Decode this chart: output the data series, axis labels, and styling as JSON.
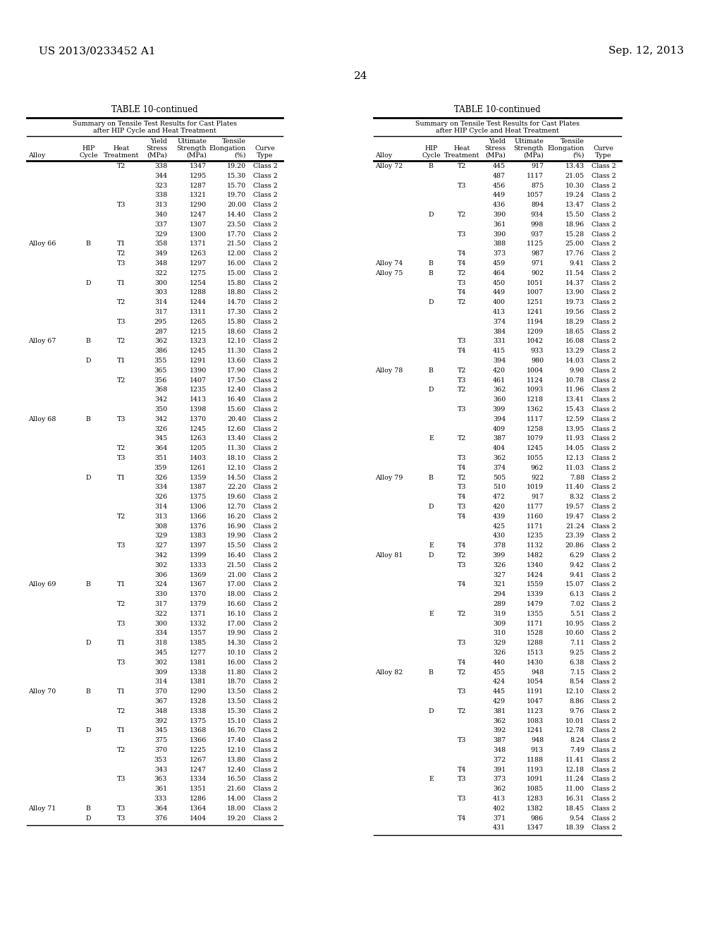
{
  "page_header_left": "US 2013/0233452 A1",
  "page_header_right": "Sep. 12, 2013",
  "page_number": "24",
  "table_title": "TABLE 10-continued",
  "subtitle_line1": "Summary on Tensile Test Results for Cast Plates",
  "subtitle_line2": "after HIP Cycle and Heat Treatment",
  "col_headers_line1": [
    "",
    "",
    "",
    "Yield",
    "Ultimate",
    "Tensile",
    ""
  ],
  "col_headers_line2": [
    "",
    "HIP",
    "Heat",
    "Stress",
    "Strength",
    "Elongation",
    "Curve"
  ],
  "col_headers_line3": [
    "Alloy",
    "Cycle",
    "Treatment",
    "(MPa)",
    "(MPa)",
    "(%)",
    "Type"
  ],
  "left_table": [
    [
      "",
      "",
      "T2",
      "338",
      "1347",
      "19.20",
      "Class 2"
    ],
    [
      "",
      "",
      "",
      "344",
      "1295",
      "15.30",
      "Class 2"
    ],
    [
      "",
      "",
      "",
      "323",
      "1287",
      "15.70",
      "Class 2"
    ],
    [
      "",
      "",
      "",
      "338",
      "1321",
      "19.70",
      "Class 2"
    ],
    [
      "",
      "",
      "T3",
      "313",
      "1290",
      "20.00",
      "Class 2"
    ],
    [
      "",
      "",
      "",
      "340",
      "1247",
      "14.40",
      "Class 2"
    ],
    [
      "",
      "",
      "",
      "337",
      "1307",
      "23.50",
      "Class 2"
    ],
    [
      "",
      "",
      "",
      "329",
      "1300",
      "17.70",
      "Class 2"
    ],
    [
      "Alloy 66",
      "B",
      "T1",
      "358",
      "1371",
      "21.50",
      "Class 2"
    ],
    [
      "",
      "",
      "T2",
      "349",
      "1263",
      "12.00",
      "Class 2"
    ],
    [
      "",
      "",
      "T3",
      "348",
      "1297",
      "16.00",
      "Class 2"
    ],
    [
      "",
      "",
      "",
      "322",
      "1275",
      "15.00",
      "Class 2"
    ],
    [
      "",
      "D",
      "T1",
      "300",
      "1254",
      "15.80",
      "Class 2"
    ],
    [
      "",
      "",
      "",
      "303",
      "1288",
      "18.80",
      "Class 2"
    ],
    [
      "",
      "",
      "T2",
      "314",
      "1244",
      "14.70",
      "Class 2"
    ],
    [
      "",
      "",
      "",
      "317",
      "1311",
      "17.30",
      "Class 2"
    ],
    [
      "",
      "",
      "T3",
      "295",
      "1265",
      "15.80",
      "Class 2"
    ],
    [
      "",
      "",
      "",
      "287",
      "1215",
      "18.60",
      "Class 2"
    ],
    [
      "Alloy 67",
      "B",
      "T2",
      "362",
      "1323",
      "12.10",
      "Class 2"
    ],
    [
      "",
      "",
      "",
      "386",
      "1245",
      "11.30",
      "Class 2"
    ],
    [
      "",
      "D",
      "T1",
      "355",
      "1291",
      "13.60",
      "Class 2"
    ],
    [
      "",
      "",
      "",
      "365",
      "1390",
      "17.90",
      "Class 2"
    ],
    [
      "",
      "",
      "T2",
      "356",
      "1407",
      "17.50",
      "Class 2"
    ],
    [
      "",
      "",
      "",
      "368",
      "1235",
      "12.40",
      "Class 2"
    ],
    [
      "",
      "",
      "",
      "342",
      "1413",
      "16.40",
      "Class 2"
    ],
    [
      "",
      "",
      "",
      "350",
      "1398",
      "15.60",
      "Class 2"
    ],
    [
      "Alloy 68",
      "B",
      "T3",
      "342",
      "1370",
      "20.40",
      "Class 2"
    ],
    [
      "",
      "",
      "",
      "326",
      "1245",
      "12.60",
      "Class 2"
    ],
    [
      "",
      "",
      "",
      "345",
      "1263",
      "13.40",
      "Class 2"
    ],
    [
      "",
      "",
      "T2",
      "364",
      "1205",
      "11.30",
      "Class 2"
    ],
    [
      "",
      "",
      "T3",
      "351",
      "1403",
      "18.10",
      "Class 2"
    ],
    [
      "",
      "",
      "",
      "359",
      "1261",
      "12.10",
      "Class 2"
    ],
    [
      "",
      "D",
      "T1",
      "326",
      "1359",
      "14.50",
      "Class 2"
    ],
    [
      "",
      "",
      "",
      "334",
      "1387",
      "22.20",
      "Class 2"
    ],
    [
      "",
      "",
      "",
      "326",
      "1375",
      "19.60",
      "Class 2"
    ],
    [
      "",
      "",
      "",
      "314",
      "1306",
      "12.70",
      "Class 2"
    ],
    [
      "",
      "",
      "T2",
      "313",
      "1366",
      "16.20",
      "Class 2"
    ],
    [
      "",
      "",
      "",
      "308",
      "1376",
      "16.90",
      "Class 2"
    ],
    [
      "",
      "",
      "",
      "329",
      "1383",
      "19.90",
      "Class 2"
    ],
    [
      "",
      "",
      "T3",
      "327",
      "1397",
      "15.50",
      "Class 2"
    ],
    [
      "",
      "",
      "",
      "342",
      "1399",
      "16.40",
      "Class 2"
    ],
    [
      "",
      "",
      "",
      "302",
      "1333",
      "21.50",
      "Class 2"
    ],
    [
      "",
      "",
      "",
      "306",
      "1369",
      "21.00",
      "Class 2"
    ],
    [
      "Alloy 69",
      "B",
      "T1",
      "324",
      "1367",
      "17.00",
      "Class 2"
    ],
    [
      "",
      "",
      "",
      "330",
      "1370",
      "18.00",
      "Class 2"
    ],
    [
      "",
      "",
      "T2",
      "317",
      "1379",
      "16.60",
      "Class 2"
    ],
    [
      "",
      "",
      "",
      "322",
      "1371",
      "16.10",
      "Class 2"
    ],
    [
      "",
      "",
      "T3",
      "300",
      "1332",
      "17.00",
      "Class 2"
    ],
    [
      "",
      "",
      "",
      "334",
      "1357",
      "19.90",
      "Class 2"
    ],
    [
      "",
      "D",
      "T1",
      "318",
      "1385",
      "14.30",
      "Class 2"
    ],
    [
      "",
      "",
      "",
      "345",
      "1277",
      "10.10",
      "Class 2"
    ],
    [
      "",
      "",
      "T3",
      "302",
      "1381",
      "16.00",
      "Class 2"
    ],
    [
      "",
      "",
      "",
      "309",
      "1338",
      "11.80",
      "Class 2"
    ],
    [
      "",
      "",
      "",
      "314",
      "1381",
      "18.70",
      "Class 2"
    ],
    [
      "Alloy 70",
      "B",
      "T1",
      "370",
      "1290",
      "13.50",
      "Class 2"
    ],
    [
      "",
      "",
      "",
      "367",
      "1328",
      "13.50",
      "Class 2"
    ],
    [
      "",
      "",
      "T2",
      "348",
      "1338",
      "15.30",
      "Class 2"
    ],
    [
      "",
      "",
      "",
      "392",
      "1375",
      "15.10",
      "Class 2"
    ],
    [
      "",
      "D",
      "T1",
      "345",
      "1368",
      "16.70",
      "Class 2"
    ],
    [
      "",
      "",
      "",
      "375",
      "1366",
      "17.40",
      "Class 2"
    ],
    [
      "",
      "",
      "T2",
      "370",
      "1225",
      "12.10",
      "Class 2"
    ],
    [
      "",
      "",
      "",
      "353",
      "1267",
      "13.80",
      "Class 2"
    ],
    [
      "",
      "",
      "",
      "343",
      "1247",
      "12.40",
      "Class 2"
    ],
    [
      "",
      "",
      "T3",
      "363",
      "1334",
      "16.50",
      "Class 2"
    ],
    [
      "",
      "",
      "",
      "361",
      "1351",
      "21.60",
      "Class 2"
    ],
    [
      "",
      "",
      "",
      "333",
      "1286",
      "14.00",
      "Class 2"
    ],
    [
      "Alloy 71",
      "B",
      "T3",
      "364",
      "1364",
      "18.00",
      "Class 2"
    ],
    [
      "",
      "D",
      "T3",
      "376",
      "1404",
      "19.20",
      "Class 2"
    ]
  ],
  "right_table": [
    [
      "Alloy 72",
      "B",
      "T2",
      "445",
      "917",
      "13.43",
      "Class 2"
    ],
    [
      "",
      "",
      "",
      "487",
      "1117",
      "21.05",
      "Class 2"
    ],
    [
      "",
      "",
      "T3",
      "456",
      "875",
      "10.30",
      "Class 2"
    ],
    [
      "",
      "",
      "",
      "449",
      "1057",
      "19.24",
      "Class 2"
    ],
    [
      "",
      "",
      "",
      "436",
      "894",
      "13.47",
      "Class 2"
    ],
    [
      "",
      "D",
      "T2",
      "390",
      "934",
      "15.50",
      "Class 2"
    ],
    [
      "",
      "",
      "",
      "361",
      "998",
      "18.96",
      "Class 2"
    ],
    [
      "",
      "",
      "T3",
      "390",
      "937",
      "15.28",
      "Class 2"
    ],
    [
      "",
      "",
      "",
      "388",
      "1125",
      "25.00",
      "Class 2"
    ],
    [
      "",
      "",
      "T4",
      "373",
      "987",
      "17.76",
      "Class 2"
    ],
    [
      "Alloy 74",
      "B",
      "T4",
      "459",
      "971",
      "9.41",
      "Class 2"
    ],
    [
      "Alloy 75",
      "B",
      "T2",
      "464",
      "902",
      "11.54",
      "Class 2"
    ],
    [
      "",
      "",
      "T3",
      "450",
      "1051",
      "14.37",
      "Class 2"
    ],
    [
      "",
      "",
      "T4",
      "449",
      "1007",
      "13.90",
      "Class 2"
    ],
    [
      "",
      "D",
      "T2",
      "400",
      "1251",
      "19.73",
      "Class 2"
    ],
    [
      "",
      "",
      "",
      "413",
      "1241",
      "19.56",
      "Class 2"
    ],
    [
      "",
      "",
      "",
      "374",
      "1194",
      "18.29",
      "Class 2"
    ],
    [
      "",
      "",
      "",
      "384",
      "1209",
      "18.65",
      "Class 2"
    ],
    [
      "",
      "",
      "T3",
      "331",
      "1042",
      "16.08",
      "Class 2"
    ],
    [
      "",
      "",
      "T4",
      "415",
      "933",
      "13.29",
      "Class 2"
    ],
    [
      "",
      "",
      "",
      "394",
      "980",
      "14.03",
      "Class 2"
    ],
    [
      "Alloy 78",
      "B",
      "T2",
      "420",
      "1004",
      "9.90",
      "Class 2"
    ],
    [
      "",
      "",
      "T3",
      "461",
      "1124",
      "10.78",
      "Class 2"
    ],
    [
      "",
      "D",
      "T2",
      "362",
      "1093",
      "11.96",
      "Class 2"
    ],
    [
      "",
      "",
      "",
      "360",
      "1218",
      "13.41",
      "Class 2"
    ],
    [
      "",
      "",
      "T3",
      "399",
      "1362",
      "15.43",
      "Class 2"
    ],
    [
      "",
      "",
      "",
      "394",
      "1117",
      "12.59",
      "Class 2"
    ],
    [
      "",
      "",
      "",
      "409",
      "1258",
      "13.95",
      "Class 2"
    ],
    [
      "",
      "E",
      "T2",
      "387",
      "1079",
      "11.93",
      "Class 2"
    ],
    [
      "",
      "",
      "",
      "404",
      "1245",
      "14.05",
      "Class 2"
    ],
    [
      "",
      "",
      "T3",
      "362",
      "1055",
      "12.13",
      "Class 2"
    ],
    [
      "",
      "",
      "T4",
      "374",
      "962",
      "11.03",
      "Class 2"
    ],
    [
      "Alloy 79",
      "B",
      "T2",
      "505",
      "922",
      "7.88",
      "Class 2"
    ],
    [
      "",
      "",
      "T3",
      "510",
      "1019",
      "11.40",
      "Class 2"
    ],
    [
      "",
      "",
      "T4",
      "472",
      "917",
      "8.32",
      "Class 2"
    ],
    [
      "",
      "D",
      "T3",
      "420",
      "1177",
      "19.57",
      "Class 2"
    ],
    [
      "",
      "",
      "T4",
      "439",
      "1160",
      "19.47",
      "Class 2"
    ],
    [
      "",
      "",
      "",
      "425",
      "1171",
      "21.24",
      "Class 2"
    ],
    [
      "",
      "",
      "",
      "430",
      "1235",
      "23.39",
      "Class 2"
    ],
    [
      "",
      "E",
      "T4",
      "378",
      "1132",
      "20.86",
      "Class 2"
    ],
    [
      "Alloy 81",
      "D",
      "T2",
      "399",
      "1482",
      "6.29",
      "Class 2"
    ],
    [
      "",
      "",
      "T3",
      "326",
      "1340",
      "9.42",
      "Class 2"
    ],
    [
      "",
      "",
      "",
      "327",
      "1424",
      "9.41",
      "Class 2"
    ],
    [
      "",
      "",
      "T4",
      "321",
      "1559",
      "15.07",
      "Class 2"
    ],
    [
      "",
      "",
      "",
      "294",
      "1339",
      "6.13",
      "Class 2"
    ],
    [
      "",
      "",
      "",
      "289",
      "1479",
      "7.02",
      "Class 2"
    ],
    [
      "",
      "E",
      "T2",
      "319",
      "1355",
      "5.51",
      "Class 2"
    ],
    [
      "",
      "",
      "",
      "309",
      "1171",
      "10.95",
      "Class 2"
    ],
    [
      "",
      "",
      "",
      "310",
      "1528",
      "10.60",
      "Class 2"
    ],
    [
      "",
      "",
      "T3",
      "329",
      "1288",
      "7.11",
      "Class 2"
    ],
    [
      "",
      "",
      "",
      "326",
      "1513",
      "9.25",
      "Class 2"
    ],
    [
      "",
      "",
      "T4",
      "440",
      "1430",
      "6.38",
      "Class 2"
    ],
    [
      "Alloy 82",
      "B",
      "T2",
      "455",
      "948",
      "7.15",
      "Class 2"
    ],
    [
      "",
      "",
      "",
      "424",
      "1054",
      "8.54",
      "Class 2"
    ],
    [
      "",
      "",
      "T3",
      "445",
      "1191",
      "12.10",
      "Class 2"
    ],
    [
      "",
      "",
      "",
      "429",
      "1047",
      "8.86",
      "Class 2"
    ],
    [
      "",
      "D",
      "T2",
      "381",
      "1123",
      "9.76",
      "Class 2"
    ],
    [
      "",
      "",
      "",
      "362",
      "1083",
      "10.01",
      "Class 2"
    ],
    [
      "",
      "",
      "",
      "392",
      "1241",
      "12.78",
      "Class 2"
    ],
    [
      "",
      "",
      "T3",
      "387",
      "948",
      "8.24",
      "Class 2"
    ],
    [
      "",
      "",
      "",
      "348",
      "913",
      "7.49",
      "Class 2"
    ],
    [
      "",
      "",
      "",
      "372",
      "1188",
      "11.41",
      "Class 2"
    ],
    [
      "",
      "",
      "T4",
      "391",
      "1193",
      "12.18",
      "Class 2"
    ],
    [
      "",
      "E",
      "T3",
      "373",
      "1091",
      "11.24",
      "Class 2"
    ],
    [
      "",
      "",
      "",
      "362",
      "1085",
      "11.00",
      "Class 2"
    ],
    [
      "",
      "",
      "T3",
      "413",
      "1283",
      "16.31",
      "Class 2"
    ],
    [
      "",
      "",
      "",
      "402",
      "1382",
      "18.45",
      "Class 2"
    ],
    [
      "",
      "",
      "T4",
      "371",
      "986",
      "9.54",
      "Class 2"
    ],
    [
      "",
      "",
      "",
      "431",
      "1347",
      "18.39",
      "Class 2"
    ]
  ]
}
